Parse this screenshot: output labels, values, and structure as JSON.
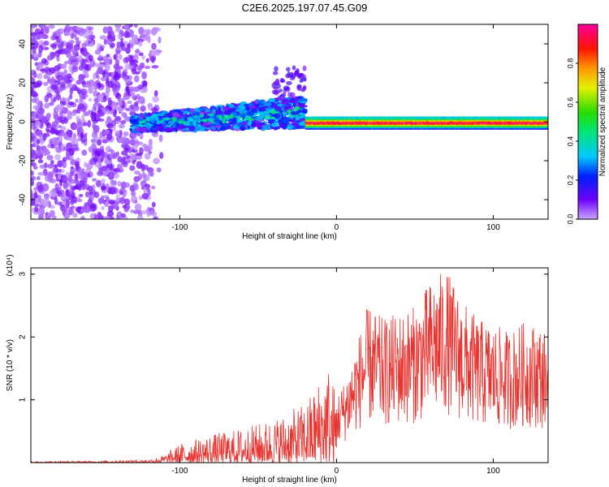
{
  "title": "C2E6.2025.197.07.45.G09",
  "chart_data": [
    {
      "type": "heatmap",
      "xlabel": "Height of straight line (km)",
      "ylabel": "Frequency (Hz)",
      "xlim": [
        -195,
        135
      ],
      "ylim": [
        -50,
        50
      ],
      "xticks": [
        -100,
        0,
        100
      ],
      "yticks": [
        -40,
        -20,
        0,
        20,
        40
      ],
      "colorbar": {
        "label": "Normalized spectral amplitude",
        "range": [
          0,
          1
        ],
        "ticks": [
          0,
          0.2,
          0.4,
          0.6,
          0.8
        ]
      },
      "regions": [
        {
          "x_range": [
            -195,
            -110
          ],
          "frequency_range": [
            -50,
            50
          ],
          "amplitude_range": [
            0.0,
            0.1
          ],
          "description": "scattered noise"
        },
        {
          "x_range": [
            -130,
            -20
          ],
          "frequency_range": [
            -12,
            10
          ],
          "amplitude_range": [
            0.05,
            0.35
          ],
          "description": "broadened band rising toward upper right"
        },
        {
          "x_range": [
            -20,
            135
          ],
          "frequency_range": [
            -3,
            3
          ],
          "amplitude_range": [
            0.5,
            1.0
          ],
          "description": "narrow band centered near 0 Hz"
        }
      ]
    },
    {
      "type": "line",
      "xlabel": "Height of straight line (km)",
      "ylabel": "SNR (10 * v/v)",
      "y_scale_label": "(x10⁴)",
      "xlim": [
        -195,
        135
      ],
      "ylim": [
        0,
        3.1
      ],
      "xticks": [
        -100,
        0,
        100
      ],
      "yticks": [
        1,
        2,
        3
      ],
      "series": [
        {
          "color": "#e8332f",
          "envelope_x": [
            -195,
            -150,
            -120,
            -110,
            -100,
            -80,
            -60,
            -40,
            -20,
            -5,
            0,
            5,
            10,
            20,
            30,
            40,
            50,
            60,
            70,
            80,
            90,
            100,
            110,
            120,
            130,
            135
          ],
          "envelope_y": [
            0.02,
            0.03,
            0.05,
            0.12,
            0.3,
            0.45,
            0.55,
            0.7,
            0.95,
            1.6,
            1.1,
            1.3,
            1.7,
            2.5,
            2.3,
            2.4,
            2.5,
            2.9,
            3.1,
            2.6,
            2.3,
            2.2,
            2.1,
            2.25,
            2.2,
            2.0
          ]
        }
      ]
    }
  ]
}
